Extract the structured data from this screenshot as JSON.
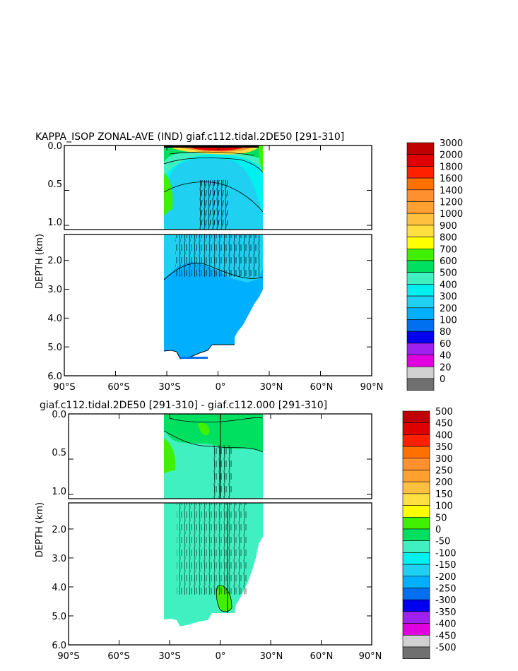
{
  "chart_data": [
    {
      "type": "heatmap",
      "title": "KAPPA_ISOP ZONAL-AVE (IND) giaf.c112.tidal.2DE50 [291-310]",
      "ylabel": "DEPTH (km)",
      "x_ticks": [
        "90°S",
        "60°S",
        "30°S",
        "0°",
        "30°N",
        "60°N",
        "90°N"
      ],
      "y_ticks_upper": [
        "0.0",
        "0.5",
        "1.0"
      ],
      "y_ticks_lower": [
        "2.0",
        "3.0",
        "4.0",
        "5.0",
        "6.0"
      ],
      "xlim": [
        -90,
        90
      ],
      "ylim_km": [
        0,
        6
      ],
      "data_lat_range": [
        -34,
        25
      ],
      "colorbar": {
        "labels": [
          "3000",
          "2000",
          "1800",
          "1600",
          "1400",
          "1200",
          "1000",
          "900",
          "800",
          "700",
          "600",
          "500",
          "400",
          "300",
          "200",
          "100",
          "80",
          "60",
          "40",
          "20",
          "0"
        ],
        "colors": [
          "#c00000",
          "#e00000",
          "#ff2000",
          "#ff7000",
          "#ff9030",
          "#ffa030",
          "#ffc040",
          "#ffe040",
          "#ffff00",
          "#40f000",
          "#00e060",
          "#40f0c0",
          "#00f0f0",
          "#20d0f0",
          "#00b0ff",
          "#0070f0",
          "#0000f0",
          "#a020f0",
          "#e000e0",
          "#d0d0d0",
          "#707070"
        ]
      }
    },
    {
      "type": "heatmap",
      "title": "giaf.c112.tidal.2DE50 [291-310] - giaf.c112.000 [291-310]",
      "ylabel": "DEPTH (km)",
      "x_ticks": [
        "90°S",
        "60°S",
        "30°S",
        "0°",
        "30°N",
        "60°N",
        "90°N"
      ],
      "y_ticks_upper": [
        "0.0",
        "0.5",
        "1.0"
      ],
      "y_ticks_lower": [
        "2.0",
        "3.0",
        "4.0",
        "5.0",
        "6.0"
      ],
      "xlim": [
        -90,
        90
      ],
      "ylim_km": [
        0,
        6
      ],
      "data_lat_range": [
        -34,
        25
      ],
      "colorbar": {
        "labels": [
          "500",
          "450",
          "400",
          "350",
          "300",
          "250",
          "200",
          "150",
          "100",
          "50",
          "0",
          "-50",
          "-100",
          "-150",
          "-200",
          "-250",
          "-300",
          "-350",
          "-400",
          "-450",
          "-500"
        ],
        "colors": [
          "#c00000",
          "#e00000",
          "#ff2000",
          "#ff7000",
          "#ff9030",
          "#ffa030",
          "#ffc040",
          "#ffe040",
          "#ffff00",
          "#40f000",
          "#00e060",
          "#40f0c0",
          "#00f0f0",
          "#20d0f0",
          "#00b0ff",
          "#0070f0",
          "#0000f0",
          "#a020f0",
          "#e000e0",
          "#d0d0d0",
          "#707070"
        ]
      }
    }
  ]
}
